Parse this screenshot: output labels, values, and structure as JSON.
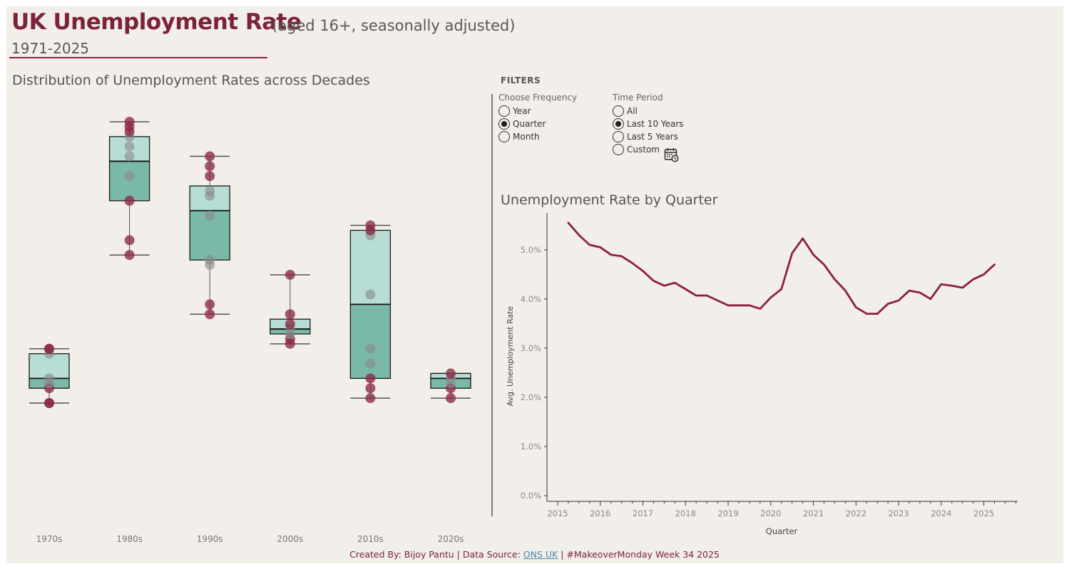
{
  "header": {
    "title": "UK Unemployment Rate",
    "subtitle": "(aged 16+, seasonally adjusted)",
    "years": "1971-2025"
  },
  "left_panel": {
    "title": "Distribution of Unemployment Rates across Decades"
  },
  "filters": {
    "heading": "FILTERS",
    "frequency": {
      "label": "Choose Frequency",
      "options": [
        "Year",
        "Quarter",
        "Month"
      ],
      "selected": "Quarter"
    },
    "time_period": {
      "label": "Time Period",
      "options": [
        "All",
        "Last 10 Years",
        "Last 5 Years",
        "Custom"
      ],
      "selected": "Last 10 Years"
    },
    "custom_icon": "calendar-icon"
  },
  "right_panel": {
    "title": "Unemployment Rate by Quarter"
  },
  "footer": {
    "prefix": "Created By: Bijoy Pantu | Data Source: ",
    "link": "ONS UK",
    "suffix": " | #MakeoverMonday Week 34 2025"
  },
  "colors": {
    "brand": "#7d2239",
    "line": "#8b2040",
    "box_upper": "#b7ddd4",
    "box_lower": "#7ab8a8",
    "dot_maroon": "#8b2a45",
    "dot_grey": "#9a9a9a",
    "background": "#f2eee9"
  },
  "chart_data": [
    {
      "type": "box",
      "title": "Distribution of Unemployment Rates across Decades",
      "categories": [
        "1970s",
        "1980s",
        "1990s",
        "2000s",
        "2010s",
        "2020s"
      ],
      "boxes": [
        {
          "category": "1970s",
          "min": 3.6,
          "q1": 3.9,
          "median": 4.1,
          "q3": 4.6,
          "max": 4.7
        },
        {
          "category": "1980s",
          "min": 6.6,
          "q1": 7.7,
          "median": 8.5,
          "q3": 9.0,
          "max": 9.3
        },
        {
          "category": "1990s",
          "min": 5.4,
          "q1": 6.5,
          "median": 7.5,
          "q3": 8.0,
          "max": 8.6
        },
        {
          "category": "2000s",
          "min": 4.8,
          "q1": 5.0,
          "median": 5.1,
          "q3": 5.3,
          "max": 6.2
        },
        {
          "category": "2010s",
          "min": 3.7,
          "q1": 4.1,
          "median": 5.6,
          "q3": 7.1,
          "max": 7.2
        },
        {
          "category": "2020s",
          "min": 3.7,
          "q1": 3.9,
          "median": 4.1,
          "q3": 4.2,
          "max": 4.2
        }
      ],
      "points": [
        {
          "category": "1970s",
          "values": [
            3.6,
            3.6,
            3.9,
            4.0,
            4.1,
            4.6,
            4.7,
            4.7
          ],
          "highlight": [
            1,
            1,
            1,
            0,
            0,
            0,
            1,
            1
          ]
        },
        {
          "category": "1980s",
          "values": [
            6.6,
            6.9,
            7.7,
            8.2,
            8.6,
            8.8,
            9.0,
            9.1,
            9.2,
            9.3
          ],
          "highlight": [
            1,
            1,
            1,
            0,
            0,
            0,
            0,
            1,
            1,
            1
          ]
        },
        {
          "category": "1990s",
          "values": [
            5.4,
            5.6,
            6.4,
            6.5,
            7.4,
            7.8,
            7.9,
            8.2,
            8.4,
            8.6
          ],
          "highlight": [
            1,
            1,
            0,
            0,
            0,
            0,
            0,
            1,
            1,
            1
          ]
        },
        {
          "category": "2000s",
          "values": [
            4.8,
            4.9,
            5.0,
            5.1,
            5.2,
            5.4,
            6.2
          ],
          "highlight": [
            1,
            1,
            0,
            0,
            1,
            1,
            1
          ]
        },
        {
          "category": "2010s",
          "values": [
            3.7,
            3.9,
            4.1,
            4.4,
            4.7,
            5.8,
            7.0,
            7.1,
            7.2
          ],
          "highlight": [
            1,
            1,
            1,
            0,
            0,
            0,
            0,
            1,
            1
          ]
        },
        {
          "category": "2020s",
          "values": [
            3.7,
            3.9,
            4.0,
            4.1,
            4.2
          ],
          "highlight": [
            1,
            1,
            0,
            0,
            1
          ]
        }
      ]
    },
    {
      "type": "line",
      "title": "Unemployment Rate by Quarter",
      "xlabel": "Quarter",
      "ylabel": "Avg. Unemployment Rate",
      "ylim": [
        0,
        0.058
      ],
      "yticks": [
        0,
        0.01,
        0.02,
        0.03,
        0.04,
        0.05
      ],
      "yticklabels": [
        "0.0%",
        "1.0%",
        "2.0%",
        "3.0%",
        "4.0%",
        "5.0%"
      ],
      "xlim": [
        2014.75,
        2025.75
      ],
      "xticks": [
        2015,
        2016,
        2017,
        2018,
        2019,
        2020,
        2021,
        2022,
        2023,
        2024,
        2025
      ],
      "xticklabels": [
        "2015",
        "2016",
        "2017",
        "2018",
        "2019",
        "2020",
        "2021",
        "2022",
        "2023",
        "2024",
        "2025"
      ],
      "series": [
        {
          "x": [
            2015.25,
            2015.5,
            2015.75,
            2016.0,
            2016.25,
            2016.5,
            2016.75,
            2017.0,
            2017.25,
            2017.5,
            2017.75,
            2018.0,
            2018.25,
            2018.5,
            2018.75,
            2019.0,
            2019.25,
            2019.5,
            2019.75,
            2020.0,
            2020.25,
            2020.5,
            2020.75,
            2021.0,
            2021.25,
            2021.5,
            2021.75,
            2022.0,
            2022.25,
            2022.5,
            2022.75,
            2023.0,
            2023.25,
            2023.5,
            2023.75,
            2024.0,
            2024.25,
            2024.5,
            2024.75,
            2025.0,
            2025.25
          ],
          "values": [
            0.0555,
            0.053,
            0.051,
            0.0505,
            0.049,
            0.0487,
            0.0473,
            0.0457,
            0.0437,
            0.0427,
            0.0433,
            0.042,
            0.0407,
            0.0407,
            0.0397,
            0.0387,
            0.0387,
            0.0387,
            0.038,
            0.0403,
            0.042,
            0.0493,
            0.0523,
            0.049,
            0.047,
            0.044,
            0.0417,
            0.0383,
            0.037,
            0.037,
            0.039,
            0.0397,
            0.0417,
            0.0413,
            0.04,
            0.043,
            0.0427,
            0.0423,
            0.044,
            0.045,
            0.047
          ]
        }
      ]
    }
  ]
}
